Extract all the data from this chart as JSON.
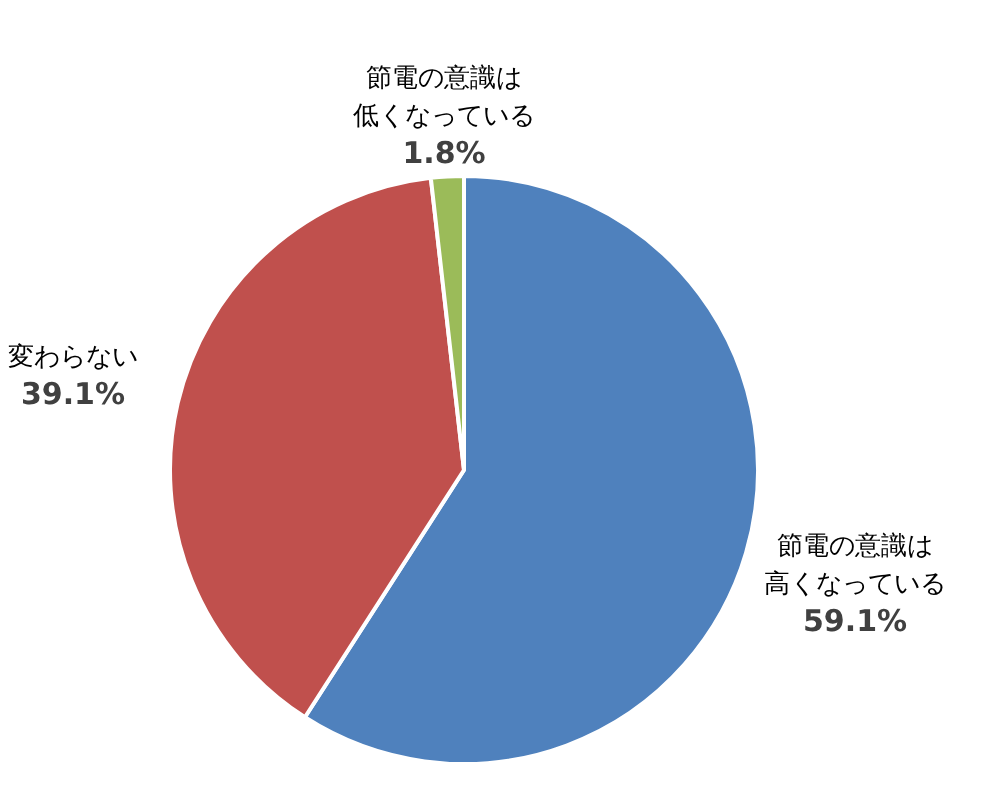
{
  "chart_data": {
    "type": "pie",
    "categories": [
      "節電の意識は高くなっている",
      "変わらない",
      "節電の意識は低くなっている"
    ],
    "values": [
      59.1,
      39.1,
      1.8
    ],
    "colors": [
      "#4f81bd",
      "#c0504d",
      "#9bbb59"
    ],
    "value_labels": [
      "59.1%",
      "39.1%",
      "1.8%"
    ],
    "legend": false
  }
}
